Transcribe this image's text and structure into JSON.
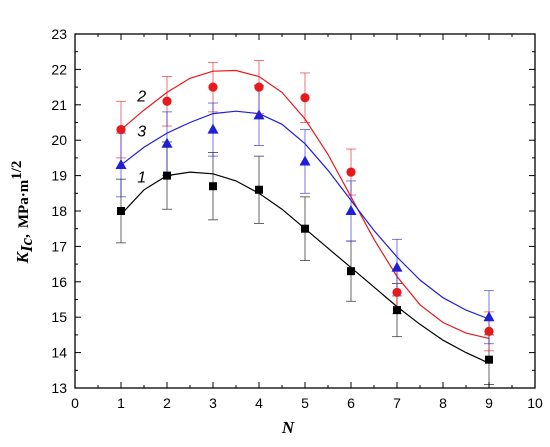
{
  "chart_data": {
    "type": "scatter",
    "xlabel": "N",
    "ylabel": {
      "main": "K",
      "sub": "Ic",
      "comma": ",",
      "unit": "MPa·m",
      "exp": "1/2"
    },
    "xlim": [
      0,
      10
    ],
    "ylim": [
      13,
      23
    ],
    "xticks": [
      "0",
      "1",
      "2",
      "3",
      "4",
      "5",
      "6",
      "7",
      "8",
      "9",
      "10"
    ],
    "yticks": [
      "13",
      "14",
      "15",
      "16",
      "17",
      "18",
      "19",
      "20",
      "21",
      "22",
      "23"
    ],
    "series": [
      {
        "name": "1",
        "color": "#000000",
        "marker": "square",
        "x": [
          1,
          2,
          3,
          4,
          5,
          6,
          7,
          9
        ],
        "y": [
          18.0,
          19.0,
          18.7,
          18.6,
          17.5,
          16.3,
          15.2,
          13.8
        ],
        "err": [
          0.9,
          0.95,
          0.95,
          0.95,
          0.9,
          0.85,
          0.75,
          0.7
        ],
        "fit_x": [
          1,
          1.5,
          2,
          2.5,
          3,
          3.5,
          4,
          4.5,
          5,
          5.5,
          6,
          6.5,
          7,
          7.5,
          8,
          8.5,
          9
        ],
        "fit_y": [
          17.9,
          18.6,
          19.0,
          19.1,
          19.05,
          18.85,
          18.5,
          18.05,
          17.5,
          16.95,
          16.4,
          15.85,
          15.3,
          14.8,
          14.35,
          14.0,
          13.7
        ],
        "label_at": [
          1.45,
          18.8
        ]
      },
      {
        "name": "2",
        "color": "#e41a1c",
        "marker": "circle",
        "x": [
          1,
          2,
          3,
          4,
          5,
          6,
          7,
          9
        ],
        "y": [
          20.3,
          21.1,
          21.5,
          21.5,
          21.2,
          19.1,
          15.7,
          14.6
        ],
        "err": [
          0.8,
          0.7,
          0.7,
          0.75,
          0.7,
          0.65,
          0.6,
          0.55
        ],
        "fit_x": [
          1,
          1.5,
          2,
          2.5,
          3,
          3.5,
          4,
          4.5,
          5,
          5.5,
          6,
          6.5,
          7,
          7.5,
          8,
          8.5,
          9
        ],
        "fit_y": [
          20.3,
          20.85,
          21.35,
          21.75,
          21.95,
          21.97,
          21.8,
          21.35,
          20.6,
          19.6,
          18.4,
          17.2,
          16.15,
          15.35,
          14.85,
          14.55,
          14.4
        ],
        "label_at": [
          1.45,
          21.1
        ]
      },
      {
        "name": "3",
        "color": "#1f1fd6",
        "marker": "triangle",
        "x": [
          1,
          2,
          3,
          4,
          5,
          6,
          7,
          9
        ],
        "y": [
          19.3,
          19.9,
          20.3,
          20.7,
          19.4,
          18.0,
          16.4,
          15.0
        ],
        "err": [
          0.9,
          0.9,
          0.75,
          0.85,
          0.9,
          0.85,
          0.8,
          0.75
        ],
        "fit_x": [
          1,
          1.5,
          2,
          2.5,
          3,
          3.5,
          4,
          4.5,
          5,
          5.5,
          6,
          6.5,
          7,
          7.5,
          8,
          8.5,
          9
        ],
        "fit_y": [
          19.3,
          19.8,
          20.2,
          20.5,
          20.75,
          20.82,
          20.75,
          20.45,
          19.9,
          19.15,
          18.3,
          17.45,
          16.7,
          16.05,
          15.55,
          15.2,
          14.95
        ],
        "label_at": [
          1.45,
          20.1
        ]
      }
    ]
  }
}
